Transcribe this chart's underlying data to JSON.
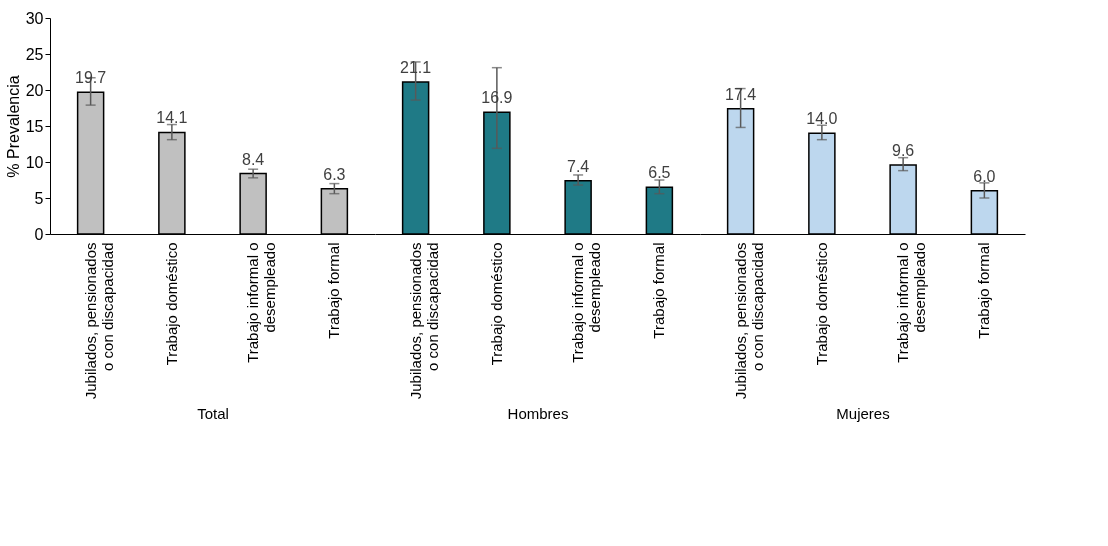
{
  "chart_data": [
    {
      "type": "bar",
      "xlabel": "Total",
      "ylabel": "% Prevalencia",
      "categories": [
        "Jubilados, pensionados o con discapacidad",
        "Trabajo doméstico",
        "Trabajo informal o desempleado",
        "Trabajo formal"
      ],
      "series": [
        {
          "color": "#c0c0c0",
          "values": [
            19.7,
            14.1,
            8.4,
            6.3
          ],
          "errors": [
            [
              17.9,
              21.7
            ],
            [
              13.1,
              15.2
            ],
            [
              7.8,
              9.0
            ],
            [
              5.6,
              7.0
            ]
          ],
          "value_labels": [
            "19.7",
            "14.1",
            "8.4",
            "6.3"
          ]
        }
      ],
      "ylim": [
        0,
        30
      ],
      "yticks": [
        0,
        5,
        10,
        15,
        20,
        25,
        30
      ],
      "grid": false
    },
    {
      "type": "bar",
      "xlabel": "Hombres",
      "categories": [
        "Jubilados, pensionados o con discapacidad",
        "Trabajo doméstico",
        "Trabajo informal o desempleado",
        "Trabajo formal"
      ],
      "series": [
        {
          "color": "#1f7a86",
          "values": [
            21.1,
            16.9,
            7.4,
            6.5
          ],
          "errors": [
            [
              18.6,
              23.9
            ],
            [
              11.9,
              23.1
            ],
            [
              6.8,
              8.2
            ],
            [
              5.6,
              7.5
            ]
          ],
          "value_labels": [
            "21.1",
            "16.9",
            "7.4",
            "6.5"
          ]
        }
      ],
      "ylim": [
        0,
        30
      ],
      "tick_labels": "x",
      "grid": false
    },
    {
      "type": "bar",
      "xlabel": "Mujeres",
      "categories": [
        "Jubilados, pensionados o con discapacidad",
        "Trabajo doméstico",
        "Trabajo informal o desempleado",
        "Trabajo formal"
      ],
      "series": [
        {
          "color": "#bdd7ee",
          "values": [
            17.4,
            14.0,
            9.6,
            6.0
          ],
          "errors": [
            [
              14.8,
              20.2
            ],
            [
              13.1,
              15.1
            ],
            [
              8.8,
              10.6
            ],
            [
              5.0,
              7.1
            ]
          ],
          "value_labels": [
            "17.4",
            "14.0",
            "9.6",
            "6.0"
          ]
        }
      ],
      "ylim": [
        0,
        30
      ],
      "tick_labels": "x",
      "grid": false
    }
  ]
}
